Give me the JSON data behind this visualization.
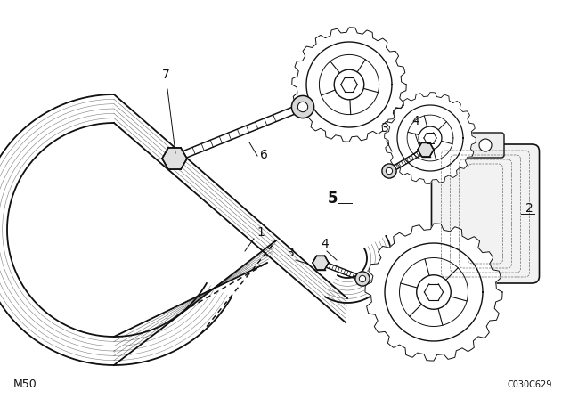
{
  "bg_color": "#ffffff",
  "line_color": "#111111",
  "fig_width": 6.4,
  "fig_height": 4.48,
  "dpi": 100,
  "footer_left": "M50",
  "footer_right": "C030C629"
}
